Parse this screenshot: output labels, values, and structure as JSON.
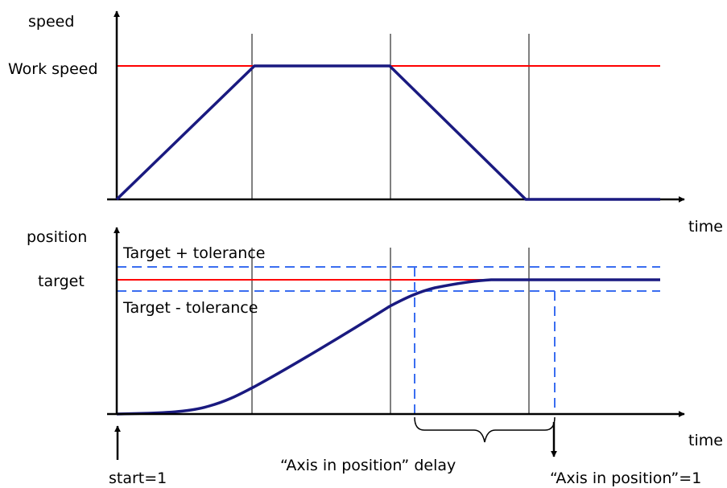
{
  "colors": {
    "axis": "#000000",
    "reference_line": "#ff0000",
    "trajectory": "#1a1a80",
    "tolerance": "#3a6df0",
    "divider": "#000000"
  },
  "speed_chart": {
    "ylabel": "speed",
    "xlabel": "time",
    "level_label": "Work speed"
  },
  "position_chart": {
    "ylabel": "position",
    "xlabel": "time",
    "target_label": "target",
    "upper_tolerance_label": "Target + tolerance",
    "lower_tolerance_label": "Target - tolerance"
  },
  "annotations": {
    "start": "start=1",
    "delay": "“Axis in position” delay",
    "in_position": "“Axis in position”=1"
  }
}
